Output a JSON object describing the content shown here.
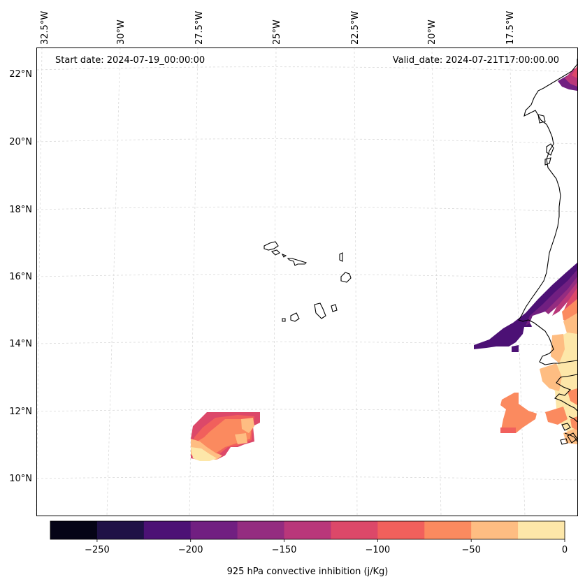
{
  "header": {
    "start_date": "Start date: 2024-07-19_00:00:00",
    "valid_date": "Valid_date: 2024-07-21T17:00:00.00"
  },
  "axes": {
    "lon_labels": [
      "32.5°W",
      "30°W",
      "27.5°W",
      "25°W",
      "22.5°W",
      "20°W",
      "17.5°W"
    ],
    "lat_labels": [
      "22°N",
      "20°N",
      "18°N",
      "16°N",
      "14°N",
      "12°N",
      "10°N"
    ]
  },
  "colorbar": {
    "label": "925 hPa convective inhibition (j/Kg)",
    "tick_labels": [
      "−250",
      "−200",
      "−150",
      "−100",
      "−50",
      "0"
    ],
    "levels": [
      -275,
      -250,
      -225,
      -200,
      -175,
      -150,
      -125,
      -100,
      -75,
      -50,
      -25,
      0
    ],
    "colors": [
      "#050416",
      "#1f1146",
      "#4c1175",
      "#711f81",
      "#942c80",
      "#b9377a",
      "#dc4869",
      "#f1605c",
      "#fb8a5f",
      "#febd82",
      "#fde7a9"
    ]
  },
  "colors": {
    "coastline": "#000000",
    "gridline": "#d9d9d9",
    "background": "#ffffff"
  }
}
